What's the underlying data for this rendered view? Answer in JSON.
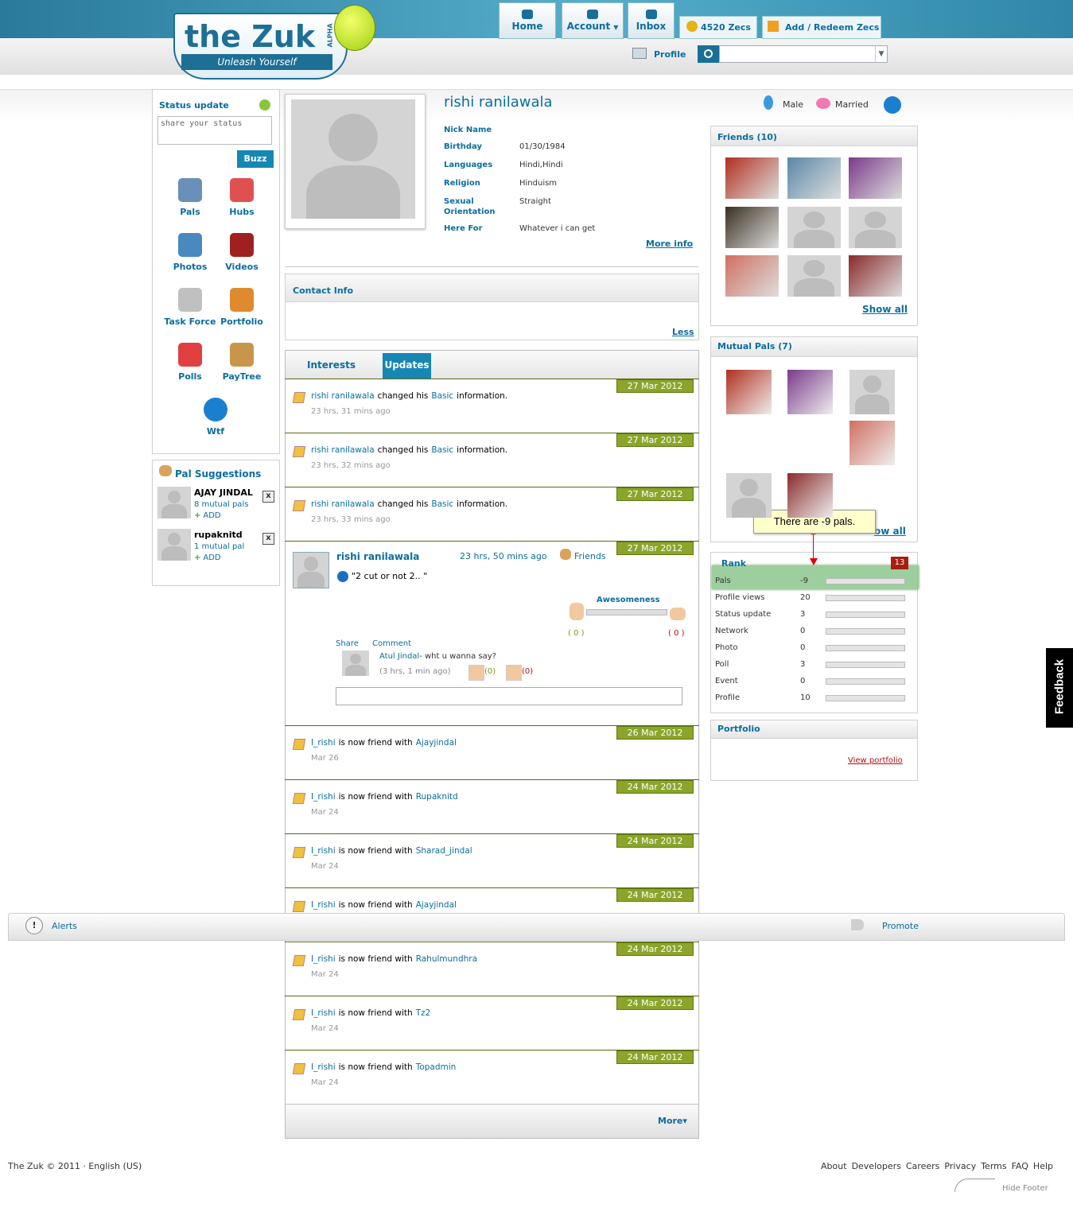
{
  "header": {
    "logo": "the Zuk",
    "badge": "ALPHA",
    "tagline": "Unleash Yourself",
    "nav": [
      "Home",
      "Account",
      "Inbox"
    ],
    "zecs": "4520 Zecs",
    "redeem": "Add / Redeem Zecs",
    "profile_link": "Profile"
  },
  "left": {
    "status_title": "Status update",
    "status_placeholder": "share your status",
    "buzz": "Buzz",
    "apps": [
      "Pals",
      "Hubs",
      "Photos",
      "Videos",
      "Task Force",
      "Portfolio",
      "Polls",
      "PayTree",
      "Wtf"
    ],
    "suggestions_title": "Pal Suggestions",
    "suggestions": [
      {
        "name": "AJAY JINDAL",
        "mutual": "8 mutual pals",
        "add": "ADD",
        "close": "x"
      },
      {
        "name": "rupaknitd",
        "mutual": "1 mutual pal",
        "add": "ADD",
        "close": "x"
      }
    ]
  },
  "profile": {
    "name": "rishi ranilawala",
    "gender": "Male",
    "relationship": "Married",
    "fields": [
      {
        "label": "Nick Name"
      },
      {
        "label": "Birthday",
        "value": "01/30/1984"
      },
      {
        "label": "Languages",
        "value": "Hindi,Hindi"
      },
      {
        "label": "Religion",
        "value": "Hinduism"
      },
      {
        "label": "Sexual Orientation",
        "value": "Straight"
      },
      {
        "label": "Here For",
        "value": "Whatever i can get"
      }
    ],
    "more_info": "More info",
    "contact_title": "Contact Info",
    "less": "Less",
    "tabs": [
      "Interests",
      "Updates"
    ]
  },
  "updates": [
    {
      "kind": "basic",
      "date": "27 Mar 2012",
      "user": "rishi ranilawala",
      "verb": "changed his",
      "object": "Basic",
      "tail": "information.",
      "time": "23 hrs, 31 mins ago"
    },
    {
      "kind": "basic",
      "date": "27 Mar 2012",
      "user": "rishi ranilawala",
      "verb": "changed his",
      "object": "Basic",
      "tail": "information.",
      "time": "23 hrs, 32 mins ago"
    },
    {
      "kind": "basic",
      "date": "27 Mar 2012",
      "user": "rishi ranilawala",
      "verb": "changed his",
      "object": "Basic",
      "tail": "information.",
      "time": "23 hrs, 33 mins ago"
    },
    {
      "kind": "post",
      "date": "27 Mar 2012",
      "user": "rishi ranilawala",
      "time": "23 hrs, 50 mins ago",
      "audience": "Friends",
      "text": "\"2 cut or not 2.. \"",
      "rating_title": "Awesomeness",
      "likes": "( 0 )",
      "dislikes": "( 0 )",
      "share": "Share",
      "comment": "Comment",
      "comment_user": "Atul Jindal",
      "comment_text": "- wht u wanna say?",
      "comment_time": "(3 hrs, 1 min ago)",
      "comment_likes": "(0)",
      "comment_dislikes": "(0)"
    },
    {
      "kind": "friend",
      "date": "26 Mar 2012",
      "user": "I_rishi",
      "verb": "is now friend with",
      "object": "Ajayjindal",
      "time": "Mar 26"
    },
    {
      "kind": "friend",
      "date": "24 Mar 2012",
      "user": "I_rishi",
      "verb": "is now friend with",
      "object": "Rupaknitd",
      "time": "Mar 24"
    },
    {
      "kind": "friend",
      "date": "24 Mar 2012",
      "user": "I_rishi",
      "verb": "is now friend with",
      "object": "Sharad_jindal",
      "time": "Mar 24"
    },
    {
      "kind": "friend",
      "date": "24 Mar 2012",
      "user": "I_rishi",
      "verb": "is now friend with",
      "object": "Ajayjindal"
    },
    {
      "kind": "friend",
      "date": "24 Mar 2012",
      "user": "I_rishi",
      "verb": "is now friend with",
      "object": "Rahulmundhra",
      "time": "Mar 24"
    },
    {
      "kind": "friend",
      "date": "24 Mar 2012",
      "user": "I_rishi",
      "verb": "is now friend with",
      "object": "Tz2",
      "time": "Mar 24"
    },
    {
      "kind": "friend",
      "date": "24 Mar 2012",
      "user": "I_rishi",
      "verb": "is now friend with",
      "object": "Topadmin",
      "time": "Mar 24"
    }
  ],
  "more": "More",
  "right": {
    "friends_title": "Friends (10)",
    "show_all": "Show all",
    "mutual_title": "Mutual Pals (7)",
    "mutual_show_all": "ow all",
    "tooltip": "There are -9 pals.",
    "rank_title": "Rank",
    "rank_badge": "13",
    "rank": [
      {
        "label": "Pals",
        "value": -9
      },
      {
        "label": "Profile views",
        "value": 20
      },
      {
        "label": "Status update",
        "value": 3
      },
      {
        "label": "Network",
        "value": 0
      },
      {
        "label": "Photo",
        "value": 0
      },
      {
        "label": "Poll",
        "value": 3
      },
      {
        "label": "Event",
        "value": 0
      },
      {
        "label": "Profile",
        "value": 10
      }
    ],
    "portfolio_title": "Portfolio",
    "view_portfolio": "View portfolio"
  },
  "feedback": "Feedback",
  "footer": {
    "alerts": "Alerts",
    "promote": "Promote",
    "copyright": "The Zuk © 2011 · English (US)",
    "links": [
      "About",
      "Developers",
      "Careers",
      "Privacy",
      "Terms",
      "FAQ",
      "Help"
    ],
    "hide": "Hide Footer"
  }
}
